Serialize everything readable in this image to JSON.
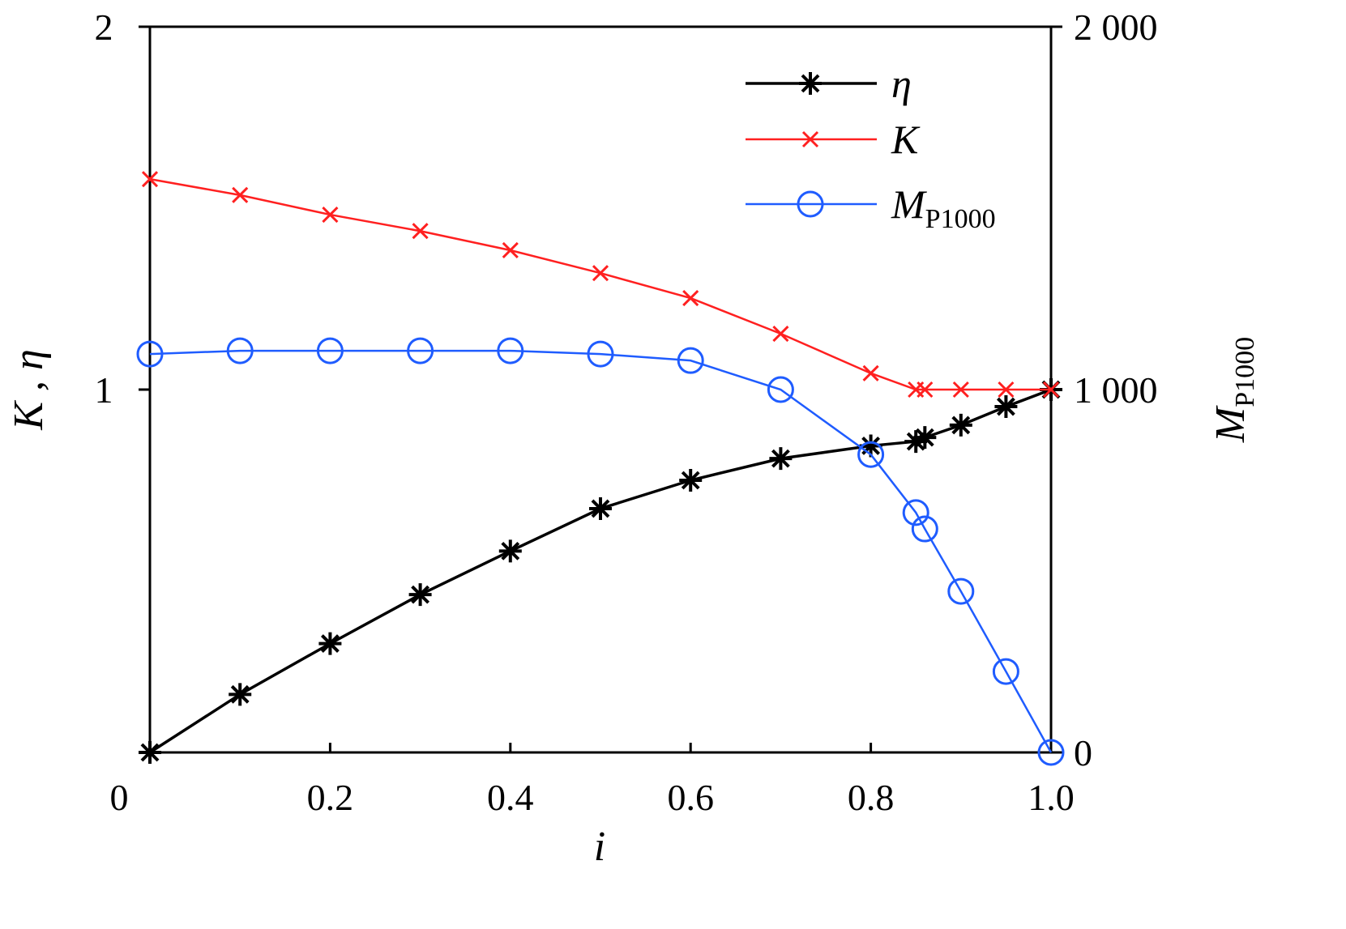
{
  "chart_data": {
    "type": "line",
    "title": "",
    "xlabel": "i",
    "ylabel_left": "K , η",
    "ylabel_right": {
      "main": "M",
      "sub": "P1000"
    },
    "xlim": [
      0,
      1.0
    ],
    "ylim_left": [
      0,
      2
    ],
    "ylim_right": [
      0,
      2000
    ],
    "x_ticks": [
      "0",
      "0.2",
      "0.4",
      "0.6",
      "0.8",
      "1.0"
    ],
    "x_tick_values": [
      0,
      0.2,
      0.4,
      0.6,
      0.8,
      1.0
    ],
    "y_left_ticks": [
      "1",
      "2"
    ],
    "y_left_tick_values": [
      1,
      2
    ],
    "y_right_ticks": [
      "0",
      "1 000",
      "2 000"
    ],
    "y_right_tick_values": [
      0,
      1000,
      2000
    ],
    "grid": false,
    "legend_position": "top-right",
    "x": [
      0,
      0.1,
      0.2,
      0.3,
      0.4,
      0.5,
      0.6,
      0.7,
      0.8,
      0.85,
      0.86,
      0.9,
      0.95,
      1.0
    ],
    "series": [
      {
        "name": "η",
        "axis": "left",
        "color": "#000000",
        "marker": "asterisk",
        "values": [
          0,
          0.16,
          0.3,
          0.435,
          0.555,
          0.672,
          0.75,
          0.81,
          0.845,
          0.857,
          0.868,
          0.902,
          0.953,
          1.0
        ]
      },
      {
        "name": "K",
        "axis": "left",
        "color": "#ff2020",
        "marker": "x",
        "values": [
          1.58,
          1.536,
          1.482,
          1.437,
          1.384,
          1.321,
          1.252,
          1.154,
          1.045,
          1.0,
          1.0,
          1.0,
          1.0,
          1.0
        ]
      },
      {
        "name": "M",
        "sub": "P1000",
        "axis": "right",
        "color": "#1f5cff",
        "marker": "circle",
        "values": [
          1098,
          1107,
          1107,
          1107,
          1107,
          1098,
          1080,
          1000,
          821,
          661,
          616,
          444,
          223,
          0
        ]
      }
    ]
  }
}
